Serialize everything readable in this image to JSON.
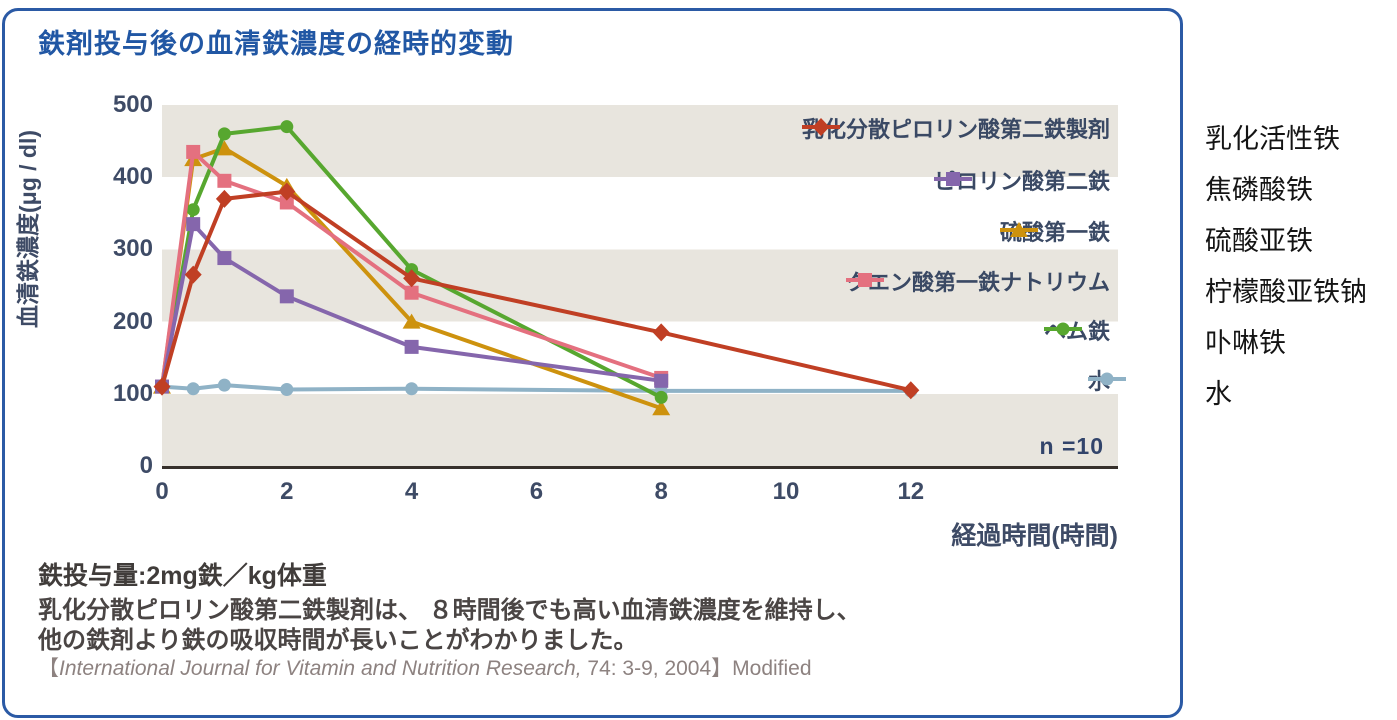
{
  "chart_data": {
    "type": "line",
    "title": "鉄剤投与後の血清鉄濃度の経時的変動",
    "ylabel": "血清鉄濃度(μg / dl)",
    "xlabel": "経過時間(時間)",
    "x_ticks": [
      0,
      2,
      4,
      6,
      8,
      10,
      12
    ],
    "y_ticks": [
      0,
      100,
      200,
      300,
      400,
      500
    ],
    "xlim": [
      0,
      15.3
    ],
    "ylim": [
      0,
      500
    ],
    "annotation": "n =10",
    "legend_position": "top-right-inside",
    "grid": "alternating horizontal gray bands (gray: 0-100, 200-300, 400-500)",
    "series": [
      {
        "name": "乳化分散ピロリン酸第二鉄製剤",
        "color": "#c03f24",
        "marker": "diamond",
        "x": [
          0,
          0.5,
          1,
          2,
          4,
          8,
          12
        ],
        "y": [
          110,
          265,
          370,
          380,
          260,
          185,
          105
        ]
      },
      {
        "name": "ピロリン酸第二鉄",
        "color": "#8566ac",
        "marker": "square",
        "x": [
          0,
          0.5,
          1,
          2,
          4,
          8
        ],
        "y": [
          110,
          335,
          288,
          235,
          165,
          118
        ]
      },
      {
        "name": "硫酸第一鉄",
        "color": "#cd920e",
        "marker": "triangle",
        "x": [
          0,
          0.5,
          1,
          2,
          4,
          8
        ],
        "y": [
          110,
          425,
          440,
          388,
          200,
          80
        ]
      },
      {
        "name": "クエン酸第一鉄ナトリウム",
        "color": "#e4707f",
        "marker": "square",
        "x": [
          0,
          0.5,
          1,
          2,
          4,
          8
        ],
        "y": [
          110,
          435,
          395,
          365,
          240,
          122
        ]
      },
      {
        "name": "ヘム鉄",
        "color": "#57a72f",
        "marker": "circle",
        "x": [
          0,
          0.5,
          1,
          2,
          4,
          8
        ],
        "y": [
          110,
          355,
          460,
          470,
          272,
          95
        ]
      },
      {
        "name": "水",
        "color": "#8fb2c6",
        "marker": "circle",
        "x": [
          0,
          0.5,
          1,
          2,
          4,
          8,
          12
        ],
        "y": [
          110,
          107,
          112,
          106,
          107,
          104,
          104
        ]
      }
    ]
  },
  "notes": {
    "dose": "鉄投与量:2mg鉄／kg体重",
    "finding_line1": "乳化分散ピロリン酸第二鉄製剤は、 ８時間後でも高い血清鉄濃度を維持し、",
    "finding_line2": "他の鉄剤より鉄の吸収時間が長いことがわかりました。",
    "citation": {
      "prefix": "【",
      "journal": "International Journal for Vitamin and Nutrition Research,",
      "suffix": " 74: 3-9, 2004】Modified"
    }
  },
  "translations": {
    "items": [
      "乳化活性铁",
      "焦磷酸铁",
      "硫酸亚铁",
      "柠檬酸亚铁钠",
      "卟啉铁",
      "水"
    ]
  },
  "colors": {
    "card_border": "#2b5aa5",
    "title": "#2157a4",
    "band_gray": "#e8e5de",
    "axis_text": "#3e4b66",
    "body_text": "#4a4544",
    "citation_text": "#8d8280"
  }
}
